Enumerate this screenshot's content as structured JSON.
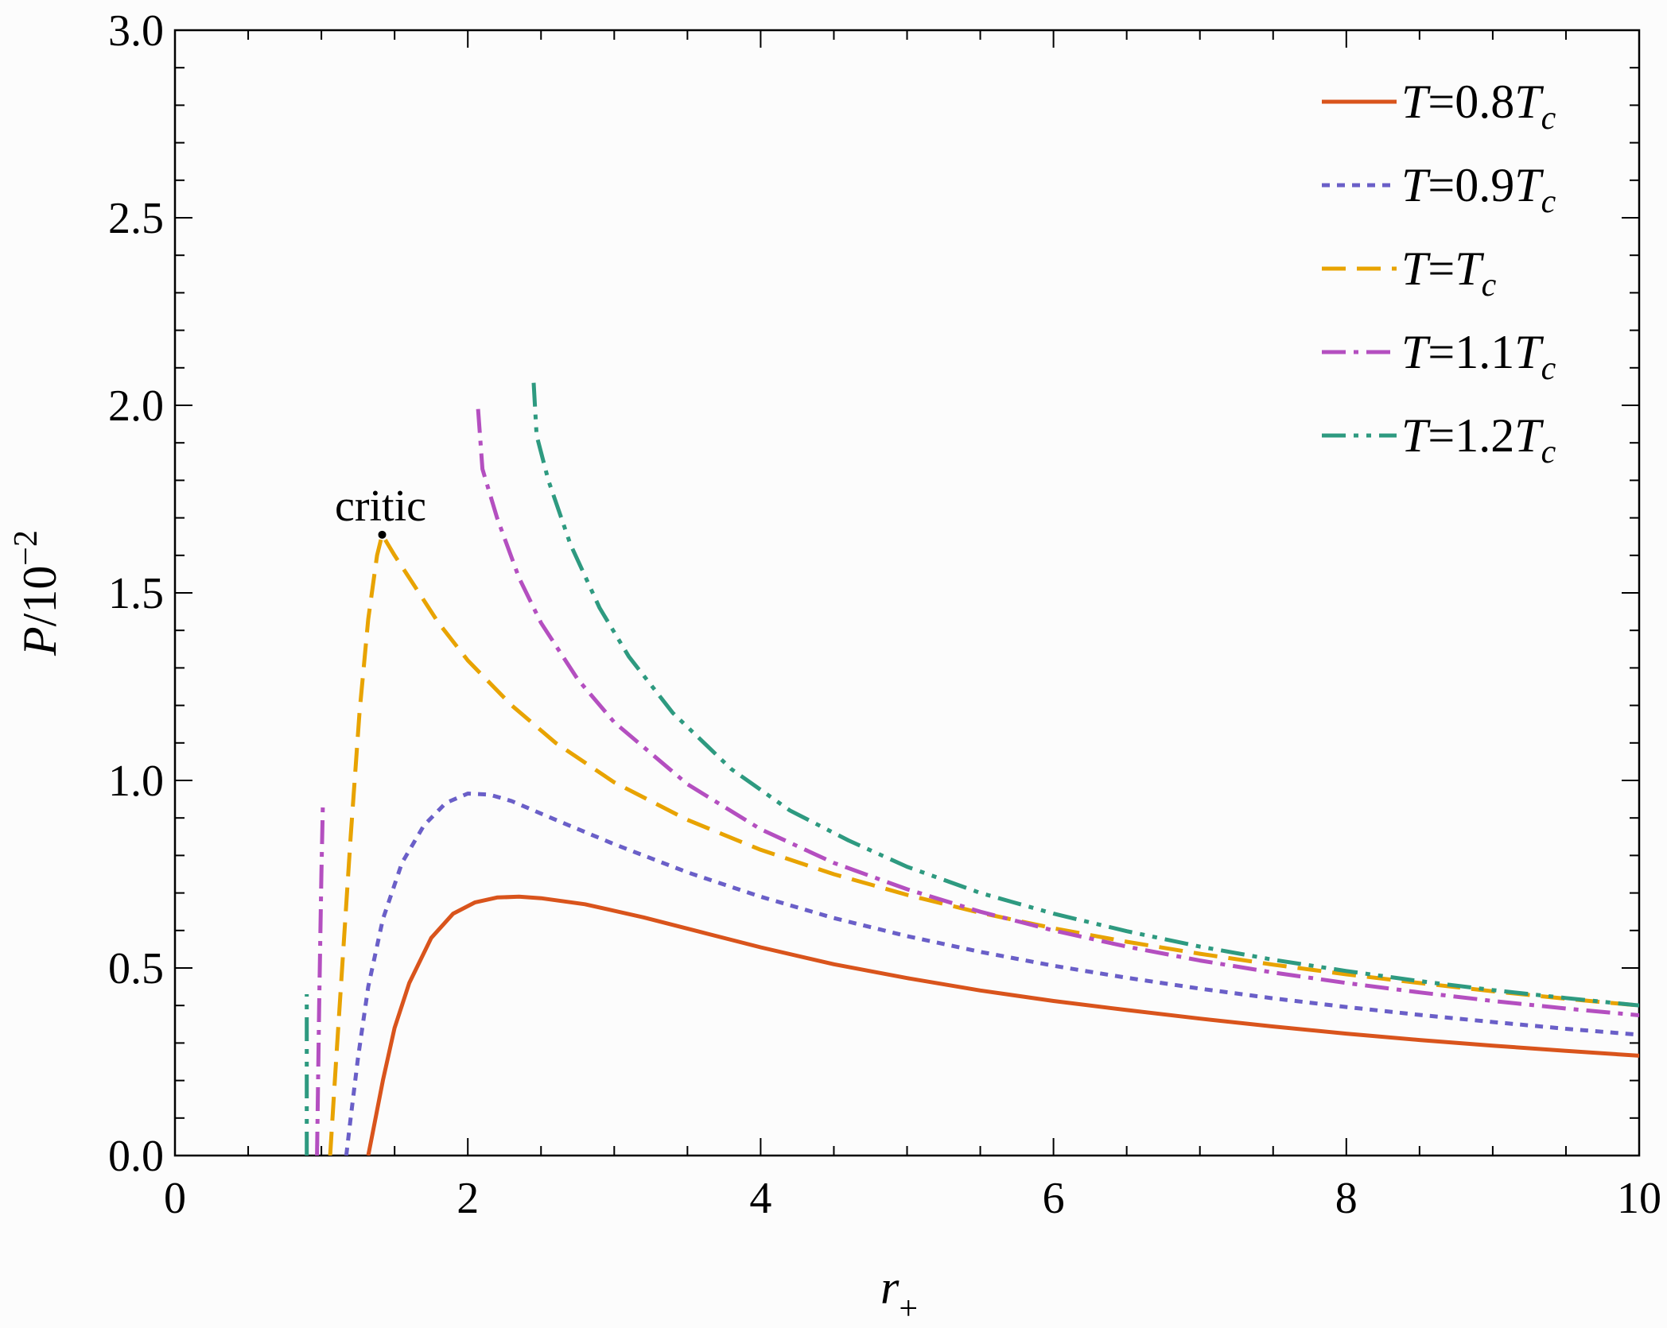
{
  "chart_data": {
    "type": "line",
    "xlabel": "r",
    "xlabel_sub": "+",
    "ylabel": "P/10",
    "ylabel_sup": "−2",
    "xlim": [
      0,
      10
    ],
    "ylim": [
      0,
      3.0
    ],
    "x_ticks": [
      0,
      2,
      4,
      6,
      8,
      10
    ],
    "y_ticks": [
      0.0,
      0.5,
      1.0,
      1.5,
      2.0,
      2.5,
      3.0
    ],
    "x_tick_labels": [
      "0",
      "2",
      "4",
      "6",
      "8",
      "10"
    ],
    "y_tick_labels": [
      "0.0",
      "0.5",
      "1.0",
      "1.5",
      "2.0",
      "2.5",
      "3.0"
    ],
    "legend_position": "top-right",
    "grid": false,
    "series": [
      {
        "name": "T=0.8Tc",
        "label_parts": [
          "T",
          "=0.8",
          "T",
          "c"
        ],
        "color": "#d9541c",
        "style": "solid",
        "x": [
          1.32,
          1.36,
          1.42,
          1.5,
          1.6,
          1.75,
          1.9,
          2.05,
          2.2,
          2.35,
          2.5,
          2.8,
          3.2,
          3.6,
          4.0,
          4.5,
          5.0,
          5.5,
          6.0,
          6.5,
          7.0,
          7.5,
          8.0,
          8.5,
          9.0,
          9.5,
          10.0
        ],
        "y": [
          0.0,
          0.08,
          0.2,
          0.34,
          0.46,
          0.58,
          0.645,
          0.675,
          0.688,
          0.69,
          0.686,
          0.67,
          0.635,
          0.595,
          0.555,
          0.51,
          0.473,
          0.44,
          0.412,
          0.388,
          0.365,
          0.344,
          0.325,
          0.308,
          0.293,
          0.279,
          0.266
        ]
      },
      {
        "name": "T=0.9Tc",
        "label_parts": [
          "T",
          "=0.9",
          "T",
          "c"
        ],
        "color": "#6a5fc8",
        "style": "dotted",
        "x": [
          1.17,
          1.2,
          1.25,
          1.32,
          1.42,
          1.55,
          1.7,
          1.85,
          2.0,
          2.15,
          2.3,
          2.6,
          3.0,
          3.5,
          4.0,
          4.5,
          5.0,
          5.5,
          6.0,
          6.5,
          7.0,
          7.5,
          8.0,
          8.5,
          9.0,
          9.5,
          10.0
        ],
        "y": [
          0.0,
          0.1,
          0.26,
          0.45,
          0.63,
          0.78,
          0.88,
          0.94,
          0.965,
          0.962,
          0.945,
          0.895,
          0.83,
          0.755,
          0.69,
          0.633,
          0.585,
          0.543,
          0.506,
          0.474,
          0.445,
          0.419,
          0.396,
          0.375,
          0.356,
          0.338,
          0.322
        ]
      },
      {
        "name": "T=Tc",
        "label_parts": [
          "T",
          "=",
          "T",
          "c"
        ],
        "color": "#e8a300",
        "style": "dashed",
        "x": [
          1.06,
          1.1,
          1.15,
          1.2,
          1.26,
          1.32,
          1.38,
          1.415,
          1.5,
          1.6,
          1.8,
          2.0,
          2.3,
          2.6,
          3.0,
          3.5,
          4.0,
          4.5,
          5.0,
          5.5,
          6.0,
          6.5,
          7.0,
          7.5,
          8.0,
          8.5,
          9.0,
          9.5,
          10.0
        ],
        "y": [
          0.0,
          0.25,
          0.55,
          0.85,
          1.18,
          1.43,
          1.6,
          1.655,
          1.6,
          1.54,
          1.42,
          1.32,
          1.2,
          1.1,
          0.995,
          0.895,
          0.815,
          0.75,
          0.695,
          0.647,
          0.606,
          0.57,
          0.538,
          0.509,
          0.483,
          0.46,
          0.438,
          0.418,
          0.4
        ]
      },
      {
        "name": "T=1.1Tc",
        "label_parts": [
          "T",
          "=1.1",
          "T",
          "c"
        ],
        "color": "#b44fc0",
        "style": "dashdot",
        "x": [
          0.97,
          0.985,
          1.0,
          1.01,
          2.07,
          2.1,
          2.2,
          2.35,
          2.5,
          2.75,
          3.0,
          3.5,
          4.0,
          4.5,
          5.0,
          5.5,
          6.0,
          6.5,
          7.0,
          7.5,
          8.0,
          8.5,
          9.0,
          9.5,
          10.0
        ],
        "y": [
          0.0,
          0.4,
          0.75,
          0.93,
          1.99,
          1.83,
          1.7,
          1.54,
          1.42,
          1.27,
          1.155,
          0.99,
          0.87,
          0.78,
          0.71,
          0.65,
          0.6,
          0.557,
          0.52,
          0.488,
          0.46,
          0.435,
          0.412,
          0.392,
          0.374
        ],
        "break_after_index": 3
      },
      {
        "name": "T=1.2Tc",
        "label_parts": [
          "T",
          "=1.2",
          "T",
          "c"
        ],
        "color": "#2e9a80",
        "style": "dashdotdot",
        "x": [
          0.9,
          0.9,
          0.9,
          2.45,
          2.47,
          2.55,
          2.7,
          2.9,
          3.1,
          3.4,
          3.8,
          4.2,
          4.6,
          5.0,
          5.5,
          6.0,
          6.5,
          7.0,
          7.5,
          8.0,
          8.5,
          9.0,
          9.5,
          10.0
        ],
        "y": [
          0.0,
          0.2,
          0.43,
          2.06,
          1.92,
          1.8,
          1.63,
          1.46,
          1.33,
          1.18,
          1.03,
          0.92,
          0.84,
          0.77,
          0.7,
          0.645,
          0.598,
          0.557,
          0.522,
          0.492,
          0.465,
          0.441,
          0.42,
          0.4
        ],
        "break_after_index": 2
      }
    ],
    "annotations": [
      {
        "text": "critic",
        "x": 1.415,
        "y": 1.655
      }
    ]
  }
}
